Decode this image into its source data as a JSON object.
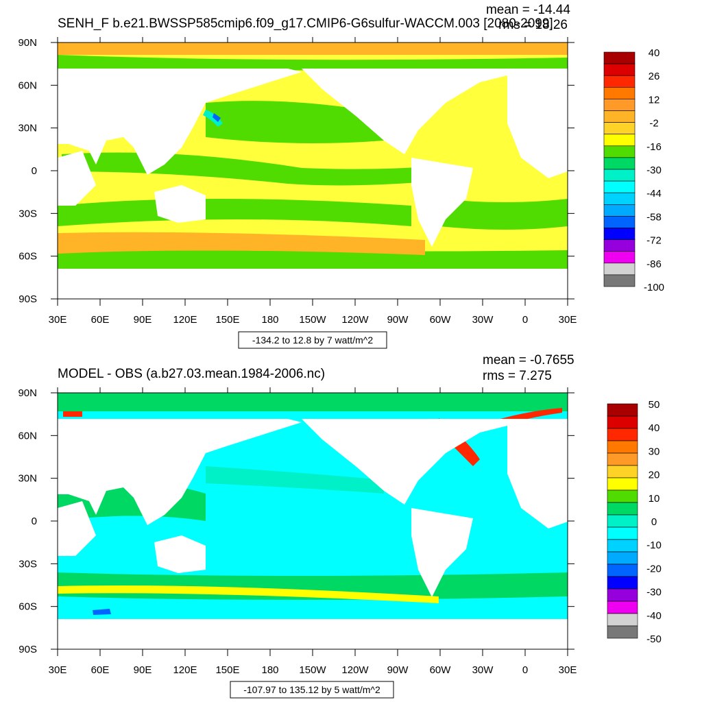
{
  "chart_data": [
    {
      "type": "heatmap",
      "title": "SENH_F b.e21.BWSSP585cmip6.f09_g17.CMIP6-G6sulfur-WACCM.003 [2080-2099]",
      "stats": {
        "mean": "mean = -14.44",
        "rms": "rms = 18.26"
      },
      "contour_info": "-134.2 to 12.8 by 7 watt/m^2",
      "x_ticks": [
        "30E",
        "60E",
        "90E",
        "120E",
        "150E",
        "180",
        "150W",
        "120W",
        "90W",
        "60W",
        "30W",
        "0",
        "30E"
      ],
      "y_ticks": [
        "90N",
        "60N",
        "30N",
        "0",
        "30S",
        "60S",
        "90S"
      ],
      "xlim": [
        30,
        390
      ],
      "ylim": [
        -90,
        90
      ],
      "colorbar": {
        "labels": [
          "40",
          "26",
          "12",
          "-2",
          "-16",
          "-30",
          "-44",
          "-58",
          "-72",
          "-86",
          "-100"
        ],
        "colors": [
          "#a80000",
          "#dc0000",
          "#ff2800",
          "#ff7800",
          "#ff9a28",
          "#ffb428",
          "#ffd228",
          "#ffff00",
          "#50dc00",
          "#00d864",
          "#00f0c8",
          "#00ffff",
          "#00d2ff",
          "#00aaff",
          "#0064ff",
          "#0000ff",
          "#9600dc",
          "#f000f0",
          "#d2d2d2",
          "#787878"
        ]
      }
    },
    {
      "type": "heatmap",
      "title": "MODEL - OBS (a.b27.03.mean.1984-2006.nc)",
      "stats": {
        "mean": "mean = -0.7655",
        "rms": "rms = 7.275"
      },
      "contour_info": "-107.97 to 135.12 by 5 watt/m^2",
      "x_ticks": [
        "30E",
        "60E",
        "90E",
        "120E",
        "150E",
        "180",
        "150W",
        "120W",
        "90W",
        "60W",
        "30W",
        "0",
        "30E"
      ],
      "y_ticks": [
        "90N",
        "60N",
        "30N",
        "0",
        "30S",
        "60S",
        "90S"
      ],
      "xlim": [
        30,
        390
      ],
      "ylim": [
        -90,
        90
      ],
      "colorbar": {
        "labels": [
          "50",
          "40",
          "30",
          "20",
          "10",
          "0",
          "-10",
          "-20",
          "-30",
          "-40",
          "-50"
        ],
        "colors": [
          "#a80000",
          "#dc0000",
          "#ff2800",
          "#ff7800",
          "#ff9a28",
          "#ffd228",
          "#ffff00",
          "#50dc00",
          "#00d864",
          "#00f0c8",
          "#00ffff",
          "#00d2ff",
          "#00aaff",
          "#0064ff",
          "#0000ff",
          "#9600dc",
          "#f000f0",
          "#d2d2d2",
          "#787878"
        ]
      }
    }
  ]
}
